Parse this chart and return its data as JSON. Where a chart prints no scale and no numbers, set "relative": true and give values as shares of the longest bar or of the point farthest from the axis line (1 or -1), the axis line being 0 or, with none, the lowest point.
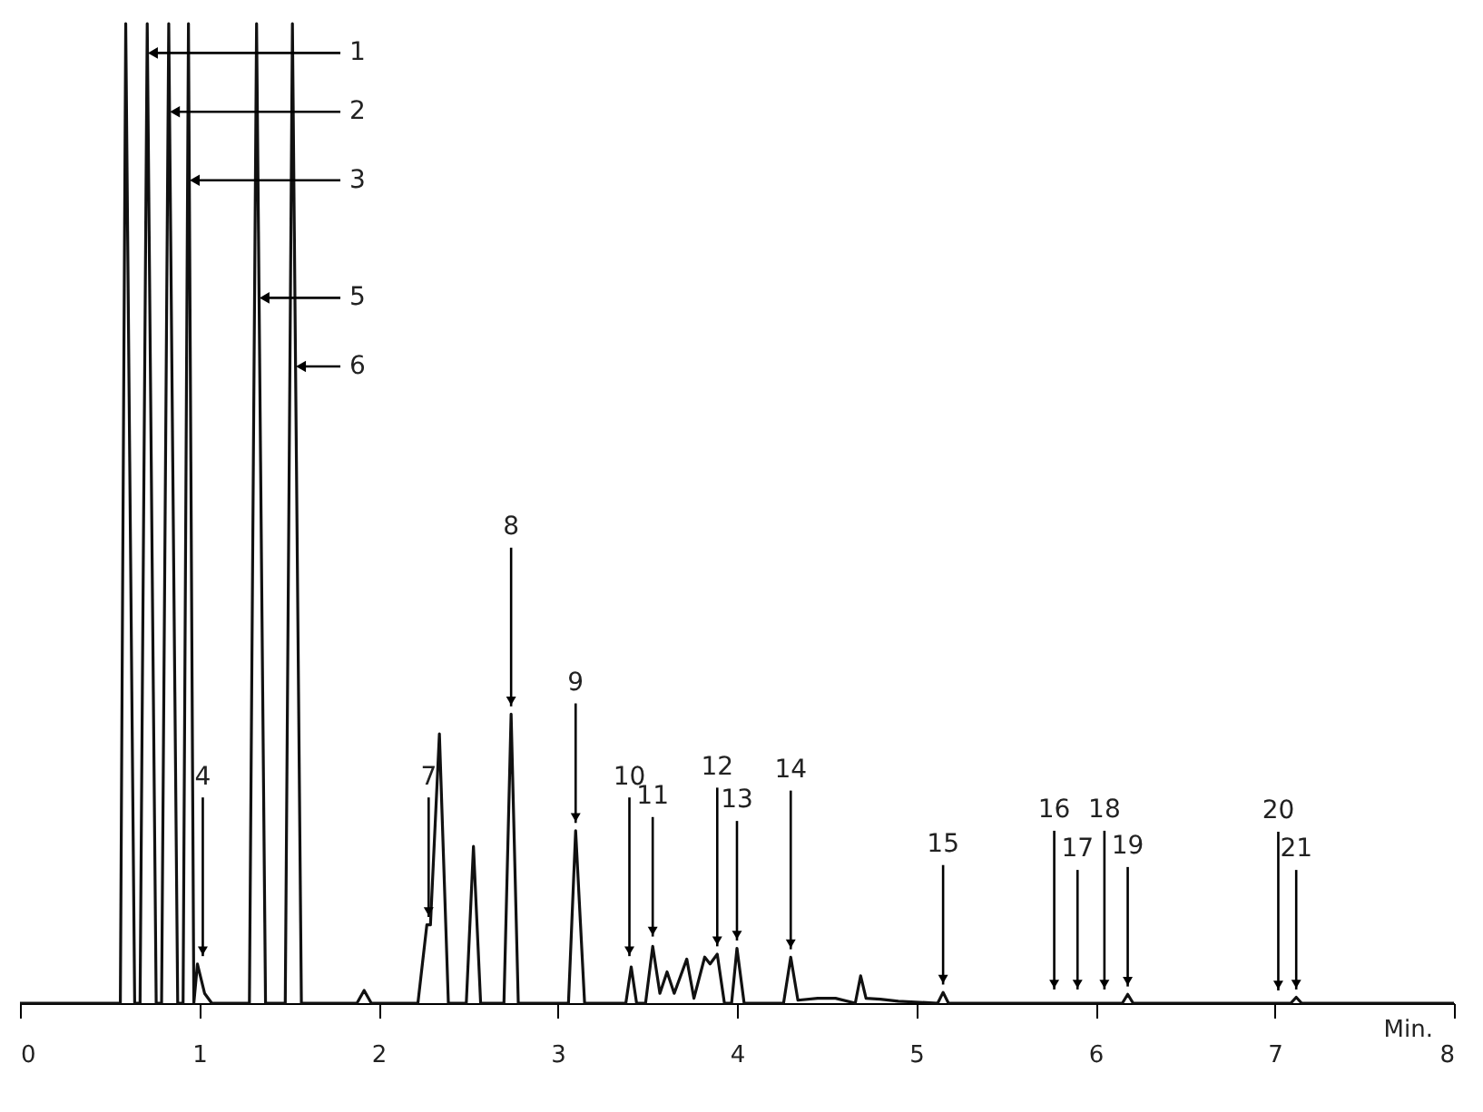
{
  "chart_data": {
    "type": "line",
    "relative": true,
    "xlabel": "Min.",
    "xlim": [
      0,
      8
    ],
    "xticks": [
      0,
      1,
      2,
      3,
      4,
      5,
      6,
      7,
      8
    ],
    "grid": false,
    "marker": "none",
    "line_style": "solid",
    "series": [
      {
        "color": "#111111",
        "x": [
          0,
          0.56,
          0.59,
          0.64,
          0.67,
          0.71,
          0.76,
          0.79,
          0.83,
          0.88,
          0.91,
          0.94,
          0.97,
          0.99,
          1.03,
          1.07,
          1.28,
          1.32,
          1.37,
          1.48,
          1.52,
          1.57,
          1.88,
          1.92,
          1.96,
          2.22,
          2.27,
          2.29,
          2.34,
          2.39,
          2.49,
          2.53,
          2.57,
          2.7,
          2.74,
          2.78,
          3.06,
          3.1,
          3.15,
          3.38,
          3.41,
          3.44,
          3.49,
          3.53,
          3.57,
          3.61,
          3.65,
          3.72,
          3.76,
          3.82,
          3.85,
          3.89,
          3.93,
          3.97,
          4.0,
          4.04,
          4.26,
          4.3,
          4.34,
          4.45,
          4.55,
          4.66,
          4.69,
          4.72,
          4.8,
          4.9,
          5.12,
          5.15,
          5.18,
          6.15,
          6.18,
          6.21,
          7.09,
          7.12,
          7.15,
          8
        ],
        "values": [
          0,
          0,
          1,
          0,
          0,
          1,
          0,
          0,
          1,
          0,
          0,
          1,
          0,
          0.04,
          0.01,
          0,
          0,
          1,
          0,
          0,
          1,
          0,
          0,
          0.013,
          0,
          0,
          0.08,
          0.08,
          0.275,
          0,
          0,
          0.16,
          0,
          0,
          0.295,
          0,
          0,
          0.176,
          0,
          0,
          0.037,
          0,
          0,
          0.058,
          0.01,
          0.032,
          0.01,
          0.045,
          0.005,
          0.047,
          0.04,
          0.05,
          0,
          0,
          0.056,
          0,
          0,
          0.047,
          0.003,
          0.005,
          0.005,
          0,
          0.028,
          0.005,
          0.004,
          0.002,
          0,
          0.011,
          0,
          0,
          0.009,
          0,
          0,
          0.006,
          0,
          0
        ]
      }
    ],
    "annotations": [
      {
        "text": "1",
        "x": 0.7115,
        "y": 0.97
      },
      {
        "text": "2",
        "x": 0.8345,
        "y": 0.91
      },
      {
        "text": "3",
        "x": 0.9448,
        "y": 0.84
      },
      {
        "text": "4",
        "x": 1.02,
        "y": 0.04
      },
      {
        "text": "5",
        "x": 1.334,
        "y": 0.72
      },
      {
        "text": "6",
        "x": 1.5375,
        "y": 0.65
      },
      {
        "text": "7",
        "x": 2.28,
        "y": 0.08
      },
      {
        "text": "8",
        "x": 2.74,
        "y": 0.295
      },
      {
        "text": "9",
        "x": 3.1,
        "y": 0.176
      },
      {
        "text": "10",
        "x": 3.4,
        "y": 0.04
      },
      {
        "text": "11",
        "x": 3.53,
        "y": 0.06
      },
      {
        "text": "12",
        "x": 3.89,
        "y": 0.05
      },
      {
        "text": "13",
        "x": 4.0,
        "y": 0.056
      },
      {
        "text": "14",
        "x": 4.3,
        "y": 0.047
      },
      {
        "text": "15",
        "x": 5.15,
        "y": 0.011
      },
      {
        "text": "16",
        "x": 5.77,
        "y": 0.006
      },
      {
        "text": "17",
        "x": 5.9,
        "y": 0.006
      },
      {
        "text": "18",
        "x": 6.05,
        "y": 0.006
      },
      {
        "text": "19",
        "x": 6.18,
        "y": 0.009
      },
      {
        "text": "20",
        "x": 7.02,
        "y": 0.005
      },
      {
        "text": "21",
        "x": 7.12,
        "y": 0.006
      }
    ]
  }
}
